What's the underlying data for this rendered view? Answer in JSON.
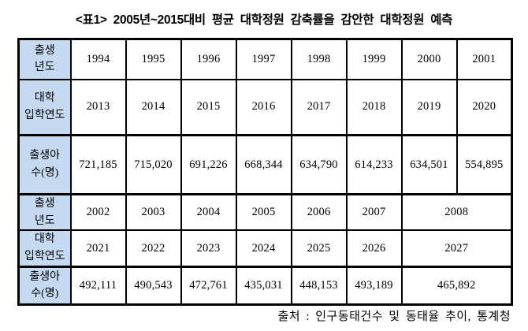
{
  "title": "<표1> 2005년~2015대비 평균 대학정원 감축률을 감안한 대학정원 예측",
  "source_note": "출처 : 인구동태건수 및 동태율 추이, 통계청",
  "colors": {
    "header_cell_bg": "#c5d9f1",
    "border": "#000000",
    "text": "#000000",
    "page_bg": "#ffffff"
  },
  "table": {
    "rows": [
      {
        "header": "출생\n년도",
        "group_end": false,
        "cells": [
          {
            "v": "1994"
          },
          {
            "v": "1995"
          },
          {
            "v": "1996"
          },
          {
            "v": "1997"
          },
          {
            "v": "1998"
          },
          {
            "v": "1999"
          },
          {
            "v": "2000"
          },
          {
            "v": "2001"
          }
        ]
      },
      {
        "header": "대학\n입학연도",
        "group_end": true,
        "cells": [
          {
            "v": "2013"
          },
          {
            "v": "2014"
          },
          {
            "v": "2015"
          },
          {
            "v": "2016"
          },
          {
            "v": "2017"
          },
          {
            "v": "2018"
          },
          {
            "v": "2019"
          },
          {
            "v": "2020"
          }
        ]
      },
      {
        "header": "출생아\n수(명)",
        "group_end": true,
        "cells": [
          {
            "v": "721,185"
          },
          {
            "v": "715,020"
          },
          {
            "v": "691,226"
          },
          {
            "v": "668,344"
          },
          {
            "v": "634,790"
          },
          {
            "v": "614,233"
          },
          {
            "v": "634,501"
          },
          {
            "v": "554,895"
          }
        ]
      },
      {
        "header": "출생\n년도",
        "group_end": false,
        "cells": [
          {
            "v": "2002"
          },
          {
            "v": "2003"
          },
          {
            "v": "2004"
          },
          {
            "v": "2005"
          },
          {
            "v": "2006"
          },
          {
            "v": "2007"
          },
          {
            "v": "2008",
            "span": 2
          }
        ]
      },
      {
        "header": "대학\n입학연도",
        "group_end": true,
        "cells": [
          {
            "v": "2021"
          },
          {
            "v": "2022"
          },
          {
            "v": "2023"
          },
          {
            "v": "2024"
          },
          {
            "v": "2025"
          },
          {
            "v": "2026"
          },
          {
            "v": "2027",
            "span": 2
          }
        ]
      },
      {
        "header": "출생아\n수(명)",
        "group_end": false,
        "cells": [
          {
            "v": "492,111"
          },
          {
            "v": "490,543"
          },
          {
            "v": "472,761"
          },
          {
            "v": "435,031"
          },
          {
            "v": "448,153"
          },
          {
            "v": "493,189"
          },
          {
            "v": "465,892",
            "span": 2
          }
        ]
      }
    ]
  }
}
